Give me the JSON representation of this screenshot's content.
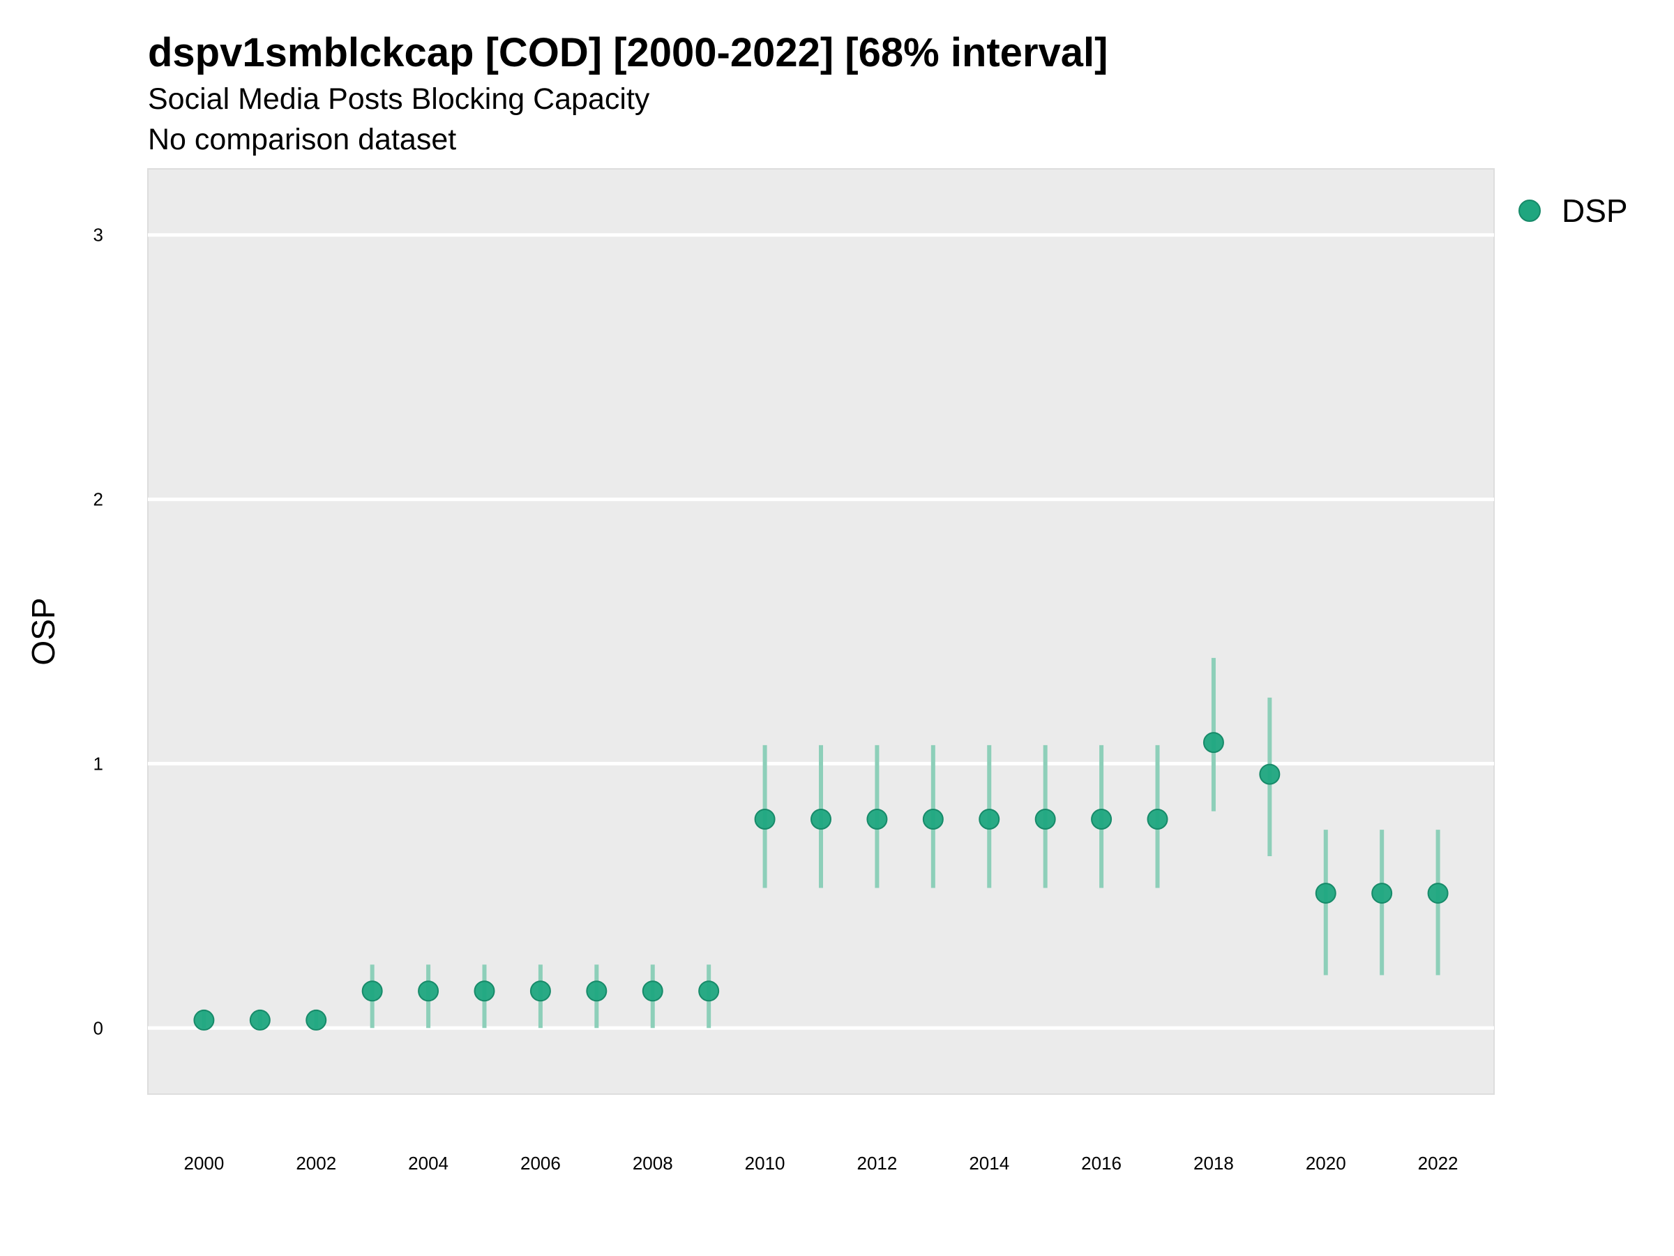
{
  "chart_data": {
    "type": "scatter",
    "title": "dspv1smblckcap [COD] [2000-2022] [68% interval]",
    "subtitle": "Social Media Posts Blocking Capacity",
    "caption": "No comparison dataset",
    "xlabel": "",
    "ylabel": "OSP",
    "xlim": [
      1999.0,
      2023.0
    ],
    "ylim": [
      -0.25,
      3.25
    ],
    "x_ticks": [
      2000,
      2002,
      2004,
      2006,
      2008,
      2010,
      2012,
      2014,
      2016,
      2018,
      2020,
      2022
    ],
    "y_ticks": [
      0,
      1,
      2,
      3
    ],
    "grid": true,
    "legend_position": "top-right",
    "series": [
      {
        "name": "DSP",
        "color": "#1fa67f",
        "interval_color": "#8dcfb9",
        "points": [
          {
            "x": 2000,
            "y": 0.03,
            "lo": 0.0,
            "hi": 0.07
          },
          {
            "x": 2001,
            "y": 0.03,
            "lo": 0.0,
            "hi": 0.07
          },
          {
            "x": 2002,
            "y": 0.03,
            "lo": 0.0,
            "hi": 0.07
          },
          {
            "x": 2003,
            "y": 0.14,
            "lo": 0.0,
            "hi": 0.24
          },
          {
            "x": 2004,
            "y": 0.14,
            "lo": 0.0,
            "hi": 0.24
          },
          {
            "x": 2005,
            "y": 0.14,
            "lo": 0.0,
            "hi": 0.24
          },
          {
            "x": 2006,
            "y": 0.14,
            "lo": 0.0,
            "hi": 0.24
          },
          {
            "x": 2007,
            "y": 0.14,
            "lo": 0.0,
            "hi": 0.24
          },
          {
            "x": 2008,
            "y": 0.14,
            "lo": 0.0,
            "hi": 0.24
          },
          {
            "x": 2009,
            "y": 0.14,
            "lo": 0.0,
            "hi": 0.24
          },
          {
            "x": 2010,
            "y": 0.79,
            "lo": 0.53,
            "hi": 1.07
          },
          {
            "x": 2011,
            "y": 0.79,
            "lo": 0.53,
            "hi": 1.07
          },
          {
            "x": 2012,
            "y": 0.79,
            "lo": 0.53,
            "hi": 1.07
          },
          {
            "x": 2013,
            "y": 0.79,
            "lo": 0.53,
            "hi": 1.07
          },
          {
            "x": 2014,
            "y": 0.79,
            "lo": 0.53,
            "hi": 1.07
          },
          {
            "x": 2015,
            "y": 0.79,
            "lo": 0.53,
            "hi": 1.07
          },
          {
            "x": 2016,
            "y": 0.79,
            "lo": 0.53,
            "hi": 1.07
          },
          {
            "x": 2017,
            "y": 0.79,
            "lo": 0.53,
            "hi": 1.07
          },
          {
            "x": 2018,
            "y": 1.08,
            "lo": 0.82,
            "hi": 1.4
          },
          {
            "x": 2019,
            "y": 0.96,
            "lo": 0.65,
            "hi": 1.25
          },
          {
            "x": 2020,
            "y": 0.51,
            "lo": 0.2,
            "hi": 0.75
          },
          {
            "x": 2021,
            "y": 0.51,
            "lo": 0.2,
            "hi": 0.75
          },
          {
            "x": 2022,
            "y": 0.51,
            "lo": 0.2,
            "hi": 0.75
          }
        ]
      }
    ]
  }
}
